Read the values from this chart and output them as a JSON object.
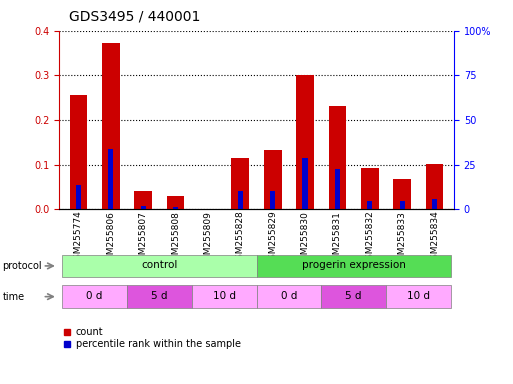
{
  "title": "GDS3495 / 440001",
  "samples": [
    "GSM255774",
    "GSM255806",
    "GSM255807",
    "GSM255808",
    "GSM255809",
    "GSM255828",
    "GSM255829",
    "GSM255830",
    "GSM255831",
    "GSM255832",
    "GSM255833",
    "GSM255834"
  ],
  "red_values": [
    0.255,
    0.372,
    0.04,
    0.03,
    0.0,
    0.115,
    0.132,
    0.301,
    0.231,
    0.093,
    0.068,
    0.101
  ],
  "blue_values": [
    0.055,
    0.135,
    0.008,
    0.006,
    0.0,
    0.04,
    0.042,
    0.115,
    0.09,
    0.018,
    0.018,
    0.022
  ],
  "ylim_left": [
    0,
    0.4
  ],
  "ylim_right": [
    0,
    100
  ],
  "yticks_left": [
    0.0,
    0.1,
    0.2,
    0.3,
    0.4
  ],
  "yticks_right": [
    0,
    25,
    50,
    75,
    100
  ],
  "ytick_labels_right": [
    "0",
    "25",
    "50",
    "75",
    "100%"
  ],
  "red_color": "#cc0000",
  "blue_color": "#0000cc",
  "bar_width": 0.55,
  "protocol_color_control": "#aaffaa",
  "protocol_color_progerin": "#55dd55",
  "time_color_0d": "#ffaaff",
  "time_color_5d": "#dd55dd",
  "time_color_10d": "#ffaaff",
  "tick_fontsize": 7,
  "legend_items": [
    "count",
    "percentile rank within the sample"
  ],
  "background_color": "#ffffff"
}
